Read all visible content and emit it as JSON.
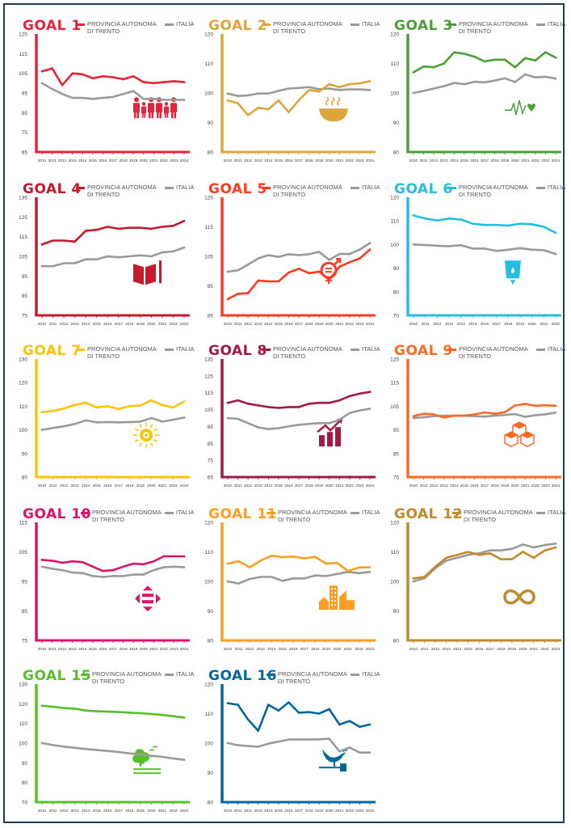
{
  "legend": {
    "prov_line1": "PROVINCIA AUTONOMA",
    "prov_line2": "DI TRENTO",
    "italia": "ITALIA"
  },
  "italia_color": "#9a9a9a",
  "chart_data": [
    {
      "type": "line",
      "title": "GOAL 1",
      "color": "#e5243b",
      "icon": "family-icon",
      "ylim": [
        65,
        125
      ],
      "yticks": [
        65,
        75,
        85,
        95,
        105,
        115,
        125
      ],
      "x": [
        "2010",
        "2011",
        "2012",
        "2013",
        "2014",
        "2015",
        "2016",
        "2017",
        "2018",
        "2019",
        "2020",
        "2021",
        "2022",
        "2023",
        "2024"
      ],
      "series": [
        {
          "name": "PROVINCIA AUTONOMA DI TRENTO",
          "values": [
            106,
            107.5,
            99,
            105,
            104.5,
            102.5,
            103.5,
            103,
            102,
            103.5,
            100.5,
            100,
            100.5,
            101,
            100.5
          ]
        },
        {
          "name": "ITALIA",
          "values": [
            100,
            97,
            94.5,
            92.5,
            92.5,
            92,
            92.5,
            93,
            94.5,
            96,
            92,
            92,
            91.5,
            91.5,
            91.5
          ]
        }
      ]
    },
    {
      "type": "line",
      "title": "GOAL 2",
      "color": "#dda63a",
      "icon": "bowl-icon",
      "ylim": [
        80,
        120
      ],
      "yticks": [
        80,
        90,
        100,
        110,
        120
      ],
      "x": [
        "2010",
        "2011",
        "2012",
        "2013",
        "2014",
        "2015",
        "2016",
        "2017",
        "2018",
        "2019",
        "2020",
        "2021",
        "2022",
        "2023",
        "2024"
      ],
      "series": [
        {
          "name": "PROVINCIA AUTONOMA DI TRENTO",
          "values": [
            97.5,
            96.5,
            92.5,
            95,
            94.5,
            97.5,
            93.5,
            97.5,
            101,
            100.5,
            103,
            102,
            103,
            103.3,
            104
          ]
        },
        {
          "name": "ITALIA",
          "values": [
            99.8,
            99,
            99.2,
            99.8,
            99.8,
            100.7,
            101.5,
            101.7,
            102,
            101.3,
            101.5,
            101,
            101.2,
            101.2,
            101
          ]
        }
      ]
    },
    {
      "type": "line",
      "title": "GOAL 3",
      "color": "#4c9f38",
      "icon": "heartbeat-icon",
      "ylim": [
        80,
        120
      ],
      "yticks": [
        80,
        90,
        100,
        110,
        120
      ],
      "x": [
        "2010",
        "2011",
        "2012",
        "2013",
        "2014",
        "2015",
        "2016",
        "2017",
        "2018",
        "2019",
        "2020",
        "2021",
        "2022",
        "2023",
        "2024"
      ],
      "series": [
        {
          "name": "PROVINCIA AUTONOMA DI TRENTO",
          "values": [
            107,
            109,
            108.7,
            110,
            113.8,
            113.3,
            112.3,
            110.7,
            111.3,
            111.3,
            108.7,
            111.8,
            111,
            113.8,
            112
          ]
        },
        {
          "name": "ITALIA",
          "values": [
            100,
            100.7,
            101.5,
            102.3,
            103.4,
            103,
            103.8,
            103.6,
            104.2,
            105,
            103.7,
            106.3,
            105.3,
            105.5,
            104.9
          ]
        }
      ]
    },
    {
      "type": "line",
      "title": "GOAL 4",
      "color": "#c5192d",
      "icon": "book-icon",
      "ylim": [
        75,
        135
      ],
      "yticks": [
        75,
        85,
        95,
        105,
        115,
        125,
        135
      ],
      "x": [
        "2010",
        "2011",
        "2012",
        "2013",
        "2014",
        "2015",
        "2016",
        "2017",
        "2018",
        "2019",
        "2020",
        "2021",
        "2022",
        "2023"
      ],
      "series": [
        {
          "name": "PROVINCIA AUTONOMA DI TRENTO",
          "values": [
            111,
            113,
            113,
            112.5,
            118,
            118.5,
            120,
            119,
            119.5,
            119.5,
            119,
            120,
            120.5,
            123
          ]
        },
        {
          "name": "ITALIA",
          "values": [
            100,
            100,
            101.5,
            101.5,
            103.5,
            103.5,
            105,
            104.5,
            105,
            105.5,
            105,
            107,
            107.5,
            109.5
          ]
        }
      ]
    },
    {
      "type": "line",
      "title": "GOAL 5",
      "color": "#ff3a21",
      "icon": "gender-equality-icon",
      "ylim": [
        85,
        125
      ],
      "yticks": [
        85,
        95,
        105,
        115,
        125
      ],
      "x": [
        "2010",
        "2011",
        "2012",
        "2013",
        "2014",
        "2015",
        "2016",
        "2017",
        "2018",
        "2019",
        "2020",
        "2021",
        "2022",
        "2023",
        "2024"
      ],
      "series": [
        {
          "name": "PROVINCIA AUTONOMA DI TRENTO",
          "values": [
            90.5,
            92.3,
            92.5,
            96.8,
            96.5,
            96.5,
            99.5,
            100.8,
            99.3,
            99.8,
            97,
            101.5,
            103,
            104.3,
            107.3
          ]
        },
        {
          "name": "ITALIA",
          "values": [
            99.8,
            100.3,
            102.2,
            104.3,
            105.4,
            104.8,
            105.7,
            105.4,
            105.7,
            106.5,
            103.8,
            105.8,
            105.8,
            107.3,
            109.5
          ]
        }
      ]
    },
    {
      "type": "line",
      "title": "GOAL 6",
      "color": "#26bde2",
      "icon": "water-icon",
      "ylim": [
        70,
        120
      ],
      "yticks": [
        70,
        80,
        90,
        100,
        110,
        120
      ],
      "x": [
        "2010",
        "2011",
        "2012",
        "2013",
        "2014",
        "2015",
        "2016",
        "2017",
        "2018",
        "2019",
        "2020",
        "2021",
        "2022"
      ],
      "series": [
        {
          "name": "PROVINCIA AUTONOMA DI TRENTO",
          "values": [
            112.3,
            111,
            110.2,
            111,
            110.6,
            108.8,
            108.3,
            108.3,
            108,
            108.8,
            108.6,
            107.5,
            105
          ]
        },
        {
          "name": "ITALIA",
          "values": [
            100,
            99.8,
            99.5,
            99.3,
            99.7,
            98.3,
            98.3,
            97.3,
            97.8,
            98.5,
            97.8,
            97.6,
            96
          ]
        }
      ]
    },
    {
      "type": "line",
      "title": "GOAL 7",
      "color": "#fcc30b",
      "icon": "sun-icon",
      "ylim": [
        80,
        130
      ],
      "yticks": [
        80,
        90,
        100,
        110,
        120,
        130
      ],
      "x": [
        "2010",
        "2011",
        "2012",
        "2013",
        "2014",
        "2015",
        "2016",
        "2017",
        "2018",
        "2019",
        "2020",
        "2021",
        "2022",
        "2023"
      ],
      "series": [
        {
          "name": "PROVINCIA AUTONOMA DI TRENTO",
          "values": [
            107.5,
            108,
            109,
            110.5,
            111.5,
            109.5,
            110,
            108.8,
            110,
            110.3,
            112.5,
            110.5,
            109.5,
            112
          ]
        },
        {
          "name": "ITALIA",
          "values": [
            100,
            100.8,
            101.5,
            102.5,
            104,
            103.2,
            103.3,
            103.2,
            103.3,
            103.5,
            105,
            103.5,
            104.3,
            105.2
          ]
        }
      ]
    },
    {
      "type": "line",
      "title": "GOAL 8",
      "color": "#a21942",
      "icon": "growth-chart-icon",
      "ylim": [
        65,
        135
      ],
      "yticks": [
        65,
        75,
        85,
        95,
        105,
        115,
        125,
        135
      ],
      "x": [
        "2010",
        "2011",
        "2012",
        "2013",
        "2014",
        "2015",
        "2016",
        "2017",
        "2018",
        "2019",
        "2020",
        "2021",
        "2022",
        "2023",
        "2024"
      ],
      "series": [
        {
          "name": "PROVINCIA AUTONOMA DI TRENTO",
          "values": [
            109,
            110.5,
            108.5,
            107.5,
            106.5,
            106,
            106.5,
            106.5,
            108.5,
            109,
            109,
            110.5,
            113,
            114.5,
            115.5
          ]
        },
        {
          "name": "ITALIA",
          "values": [
            100,
            99.5,
            97,
            94.5,
            93.5,
            94,
            95,
            96,
            96.5,
            97,
            97,
            99,
            103,
            104.5,
            105.5
          ]
        }
      ]
    },
    {
      "type": "line",
      "title": "GOAL 9",
      "color": "#fd6925",
      "icon": "cubes-icon",
      "ylim": [
        75,
        125
      ],
      "yticks": [
        75,
        85,
        95,
        105,
        115,
        125
      ],
      "x": [
        "2010",
        "2011",
        "2012",
        "2013",
        "2014",
        "2015",
        "2016",
        "2017",
        "2018",
        "2019",
        "2020",
        "2021",
        "2022",
        "2023",
        "2024"
      ],
      "series": [
        {
          "name": "PROVINCIA AUTONOMA DI TRENTO",
          "values": [
            100.8,
            101.8,
            101.6,
            100.2,
            101,
            101,
            101.5,
            102.4,
            101.8,
            102.5,
            105.3,
            106,
            105.2,
            105.4,
            105.2
          ]
        },
        {
          "name": "ITALIA",
          "values": [
            100,
            100.3,
            100.8,
            101,
            101,
            101,
            100.8,
            100.6,
            101,
            101.3,
            101.7,
            100.5,
            101.2,
            101.6,
            102.3
          ]
        }
      ]
    },
    {
      "type": "line",
      "title": "GOAL 10",
      "color": "#dd1367",
      "icon": "inequality-arrows-icon",
      "ylim": [
        75,
        115
      ],
      "yticks": [
        75,
        85,
        95,
        105,
        115
      ],
      "x": [
        "2010",
        "2011",
        "2012",
        "2013",
        "2014",
        "2015",
        "2016",
        "2017",
        "2018",
        "2019",
        "2020",
        "2021",
        "2022",
        "2023",
        "2024"
      ],
      "series": [
        {
          "name": "PROVINCIA AUTONOMA DI TRENTO",
          "values": [
            102.3,
            102,
            101.3,
            101.8,
            101.5,
            100,
            98.5,
            98.8,
            100,
            101,
            100.8,
            101.8,
            103.5,
            103.5,
            103.5
          ]
        },
        {
          "name": "ITALIA",
          "values": [
            100,
            99.3,
            98.8,
            98,
            97.8,
            96.8,
            96.5,
            96.8,
            96.8,
            97.3,
            97.3,
            98.8,
            99.8,
            100,
            99.8
          ]
        }
      ]
    },
    {
      "type": "line",
      "title": "GOAL 11",
      "color": "#fd9d24",
      "icon": "buildings-icon",
      "ylim": [
        80,
        120
      ],
      "yticks": [
        80,
        90,
        100,
        110,
        120
      ],
      "x": [
        "2010",
        "2011",
        "2012",
        "2013",
        "2014",
        "2015",
        "2016",
        "2017",
        "2018",
        "2019",
        "2020",
        "2021",
        "2022",
        "2023"
      ],
      "series": [
        {
          "name": "PROVINCIA AUTONOMA DI TRENTO",
          "values": [
            106,
            106.8,
            104.8,
            107,
            108.7,
            108.2,
            108.4,
            107.8,
            108.3,
            106,
            106.3,
            103.5,
            104.7,
            104.8
          ]
        },
        {
          "name": "ITALIA",
          "values": [
            100,
            99.3,
            100.8,
            101.5,
            101.5,
            100.2,
            101,
            101,
            102,
            101.8,
            102.5,
            103.2,
            102.8,
            103.2
          ]
        }
      ]
    },
    {
      "type": "line",
      "title": "GOAL 12",
      "color": "#bf8b2e",
      "icon": "infinity-icon",
      "ylim": [
        80,
        120
      ],
      "yticks": [
        80,
        90,
        100,
        110,
        120
      ],
      "x": [
        "2010",
        "2011",
        "2012",
        "2013",
        "2014",
        "2015",
        "2016",
        "2017",
        "2018",
        "2019",
        "2020",
        "2021",
        "2022",
        "2023"
      ],
      "series": [
        {
          "name": "PROVINCIA AUTONOMA DI TRENTO",
          "values": [
            101,
            101.5,
            105,
            108,
            109,
            110,
            109,
            109.5,
            107.5,
            107.5,
            110,
            108,
            110.5,
            111.5
          ]
        },
        {
          "name": "ITALIA",
          "values": [
            100,
            101,
            104.5,
            107,
            108,
            109,
            109.5,
            110.5,
            110.5,
            111,
            112.5,
            111.5,
            112.3,
            112.8
          ]
        }
      ]
    },
    {
      "type": "line",
      "title": "GOAL 15",
      "color": "#56c02b",
      "icon": "tree-icon",
      "ylim": [
        70,
        130
      ],
      "yticks": [
        70,
        80,
        90,
        100,
        110,
        120,
        130
      ],
      "x": [
        "2010",
        "2011",
        "2012",
        "2013",
        "2014",
        "2015",
        "2016",
        "2017",
        "2018",
        "2019",
        "2020",
        "2021",
        "2022",
        "2023"
      ],
      "series": [
        {
          "name": "PROVINCIA AUTONOMA DI TRENTO",
          "values": [
            119,
            118.5,
            117.8,
            117.5,
            116.5,
            116.2,
            116,
            115.8,
            115.5,
            115.2,
            114.8,
            114.3,
            113.7,
            113
          ]
        },
        {
          "name": "ITALIA",
          "values": [
            100,
            99,
            98.2,
            97.6,
            97,
            96.5,
            96,
            95.5,
            94.8,
            94.3,
            93.6,
            93,
            92.2,
            91.5
          ]
        }
      ]
    },
    {
      "type": "line",
      "title": "GOAL 16",
      "color": "#00689d",
      "icon": "dove-gavel-icon",
      "ylim": [
        80,
        120
      ],
      "yticks": [
        80,
        90,
        100,
        110,
        120
      ],
      "x": [
        "2010",
        "2011",
        "2012",
        "2013",
        "2014",
        "2015",
        "2016",
        "2017",
        "2018",
        "2019",
        "2020",
        "2021",
        "2022",
        "2023",
        "2024"
      ],
      "series": [
        {
          "name": "PROVINCIA AUTONOMA DI TRENTO",
          "values": [
            113.5,
            113,
            108,
            104.2,
            113,
            111,
            113.8,
            110.3,
            110.5,
            110,
            111.5,
            106.3,
            107.5,
            105.5,
            106.3
          ]
        },
        {
          "name": "ITALIA",
          "values": [
            100,
            99.3,
            99,
            98.8,
            99.8,
            100.5,
            101.2,
            101.2,
            101.2,
            101.3,
            101.5,
            97.2,
            98.5,
            96.8,
            96.8
          ]
        }
      ]
    }
  ]
}
